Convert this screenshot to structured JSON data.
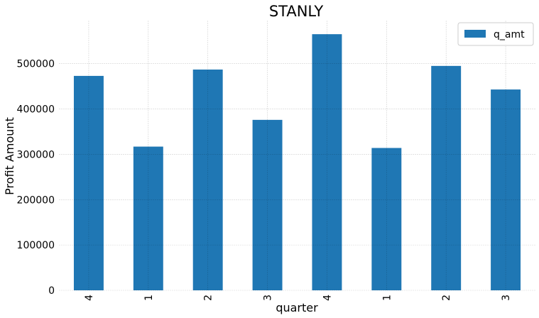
{
  "chart_data": {
    "type": "bar",
    "title": "STANLY",
    "xlabel": "quarter",
    "ylabel": "Profit Amount",
    "categories": [
      "4",
      "1",
      "2",
      "3",
      "4",
      "1",
      "2",
      "3"
    ],
    "series": [
      {
        "name": "q_amt",
        "values": [
          473000,
          317000,
          487000,
          376000,
          565000,
          314000,
          495000,
          443000
        ]
      }
    ],
    "ylim": [
      0,
      595000
    ],
    "yticks": [
      0,
      100000,
      200000,
      300000,
      400000,
      500000
    ],
    "ytick_labels": [
      "0",
      "100000",
      "200000",
      "300000",
      "400000",
      "500000"
    ],
    "grid": true,
    "legend_position": "top-right",
    "bar_color": "#1f77b4"
  }
}
